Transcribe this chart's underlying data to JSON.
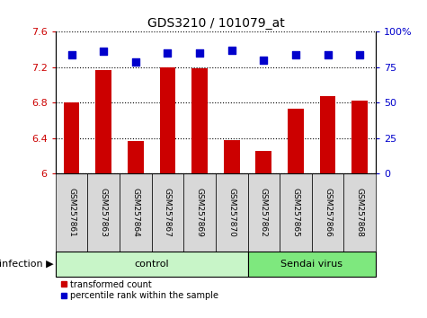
{
  "title": "GDS3210 / 101079_at",
  "samples": [
    "GSM257861",
    "GSM257863",
    "GSM257864",
    "GSM257867",
    "GSM257869",
    "GSM257870",
    "GSM257862",
    "GSM257865",
    "GSM257866",
    "GSM257868"
  ],
  "transformed_count": [
    6.8,
    7.17,
    6.37,
    7.2,
    7.19,
    6.38,
    6.26,
    6.73,
    6.87,
    6.82
  ],
  "percentile_rank": [
    84,
    86,
    79,
    85,
    85,
    87,
    80,
    84,
    84,
    84
  ],
  "groups": [
    {
      "label": "control",
      "start": 0,
      "end": 6,
      "color": "#c8f5c8"
    },
    {
      "label": "Sendai virus",
      "start": 6,
      "end": 10,
      "color": "#7ee87e"
    }
  ],
  "group_label_prefix": "infection",
  "ylim_left": [
    6.0,
    7.6
  ],
  "ylim_right": [
    0,
    100
  ],
  "yticks_left": [
    6.0,
    6.4,
    6.8,
    7.2,
    7.6
  ],
  "yticks_right": [
    0,
    25,
    50,
    75,
    100
  ],
  "bar_color": "#cc0000",
  "dot_color": "#0000cc",
  "bar_width": 0.5,
  "dot_size": 40,
  "grid_color": "black",
  "sample_box_color": "#d8d8d8",
  "legend_items": [
    {
      "label": "transformed count",
      "color": "#cc0000"
    },
    {
      "label": "percentile rank within the sample",
      "color": "#0000cc"
    }
  ]
}
